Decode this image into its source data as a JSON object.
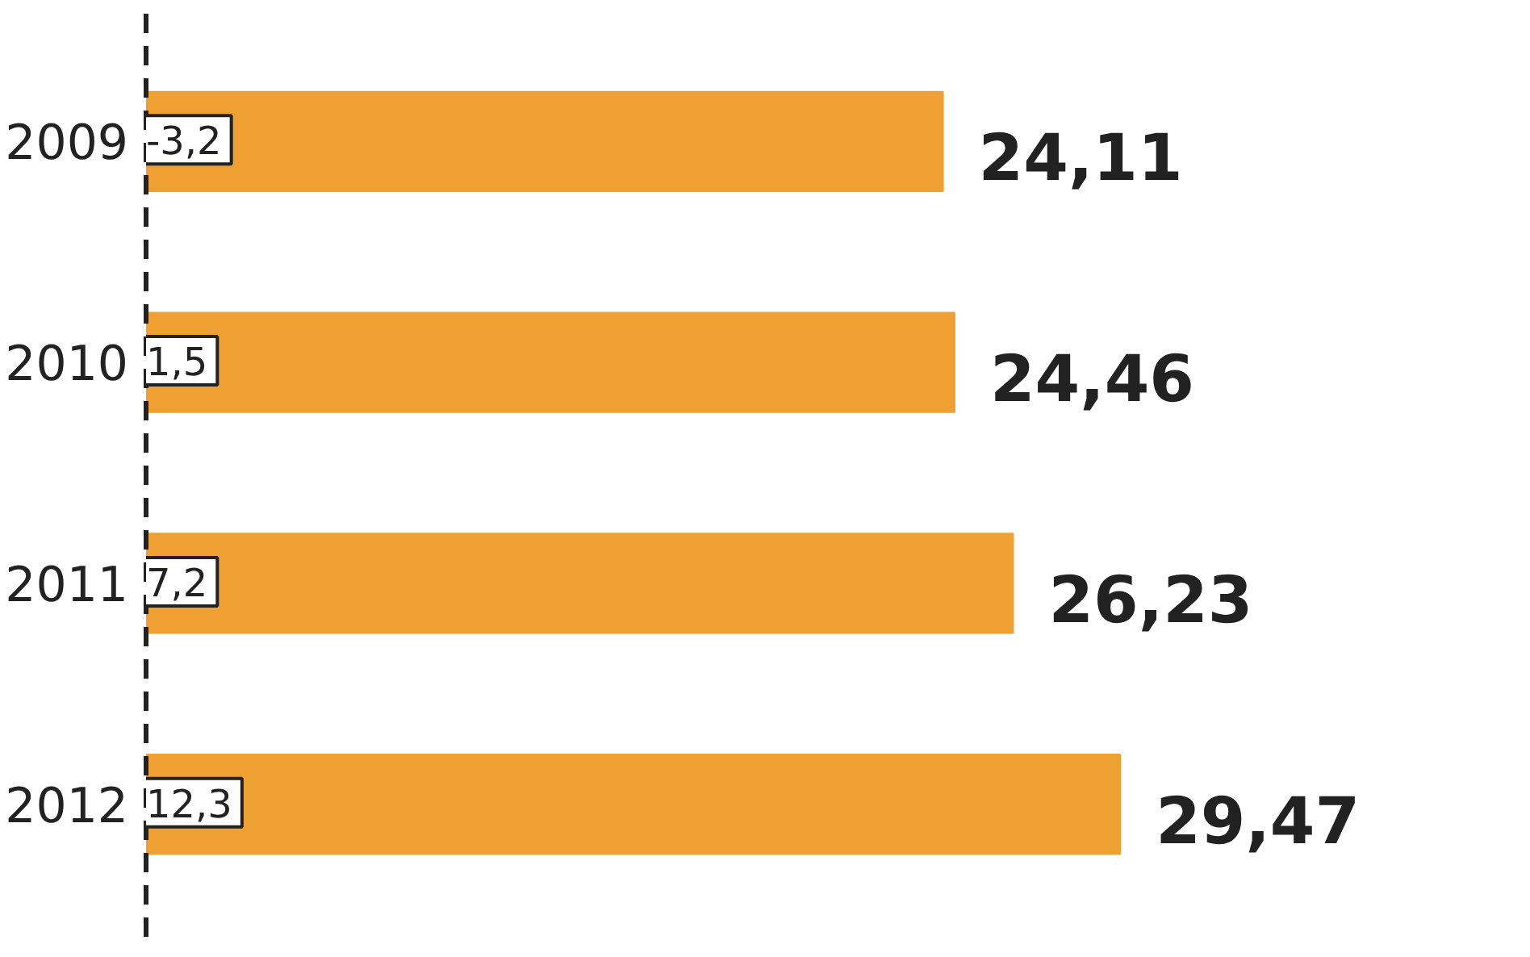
{
  "chart_data": {
    "type": "bar",
    "orientation": "horizontal",
    "categories": [
      "2009",
      "2010",
      "2011",
      "2012"
    ],
    "values": [
      24.11,
      24.46,
      26.23,
      29.47
    ],
    "value_labels": [
      "24,11",
      "24,46",
      "26,23",
      "29,47"
    ],
    "color": "#eea033",
    "annotations": [
      "-3,2",
      "1,5",
      "7,2",
      "12,3"
    ]
  }
}
